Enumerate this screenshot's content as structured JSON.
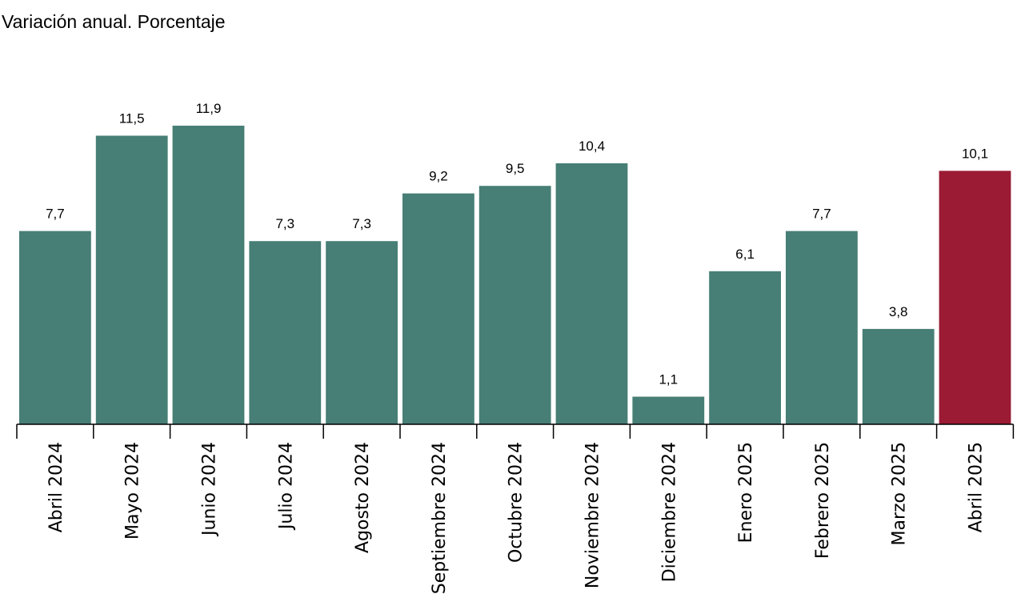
{
  "chart_data": {
    "type": "bar",
    "subtitle": "Variación anual. Porcentaje",
    "categories": [
      "Abril 2024",
      "Mayo 2024",
      "Junio 2024",
      "Julio 2024",
      "Agosto 2024",
      "Septiembre 2024",
      "Octubre 2024",
      "Noviembre 2024",
      "Diciembre 2024",
      "Enero 2025",
      "Febrero 2025",
      "Marzo 2025",
      "Abril 2025"
    ],
    "values": [
      7.7,
      11.5,
      11.9,
      7.3,
      7.3,
      9.2,
      9.5,
      10.4,
      1.1,
      6.1,
      7.7,
      3.8,
      10.1
    ],
    "value_labels": [
      "7,7",
      "11,5",
      "11,9",
      "7,3",
      "7,3",
      "9,2",
      "9,5",
      "10,4",
      "1,1",
      "6,1",
      "7,7",
      "3,8",
      "10,1"
    ],
    "highlight_index": 12,
    "ylim": [
      0,
      11.9
    ],
    "grid": false,
    "legend": "none",
    "colors": {
      "bar": "#477e76",
      "highlight": "#9b1b34",
      "axis": "#000000"
    }
  }
}
